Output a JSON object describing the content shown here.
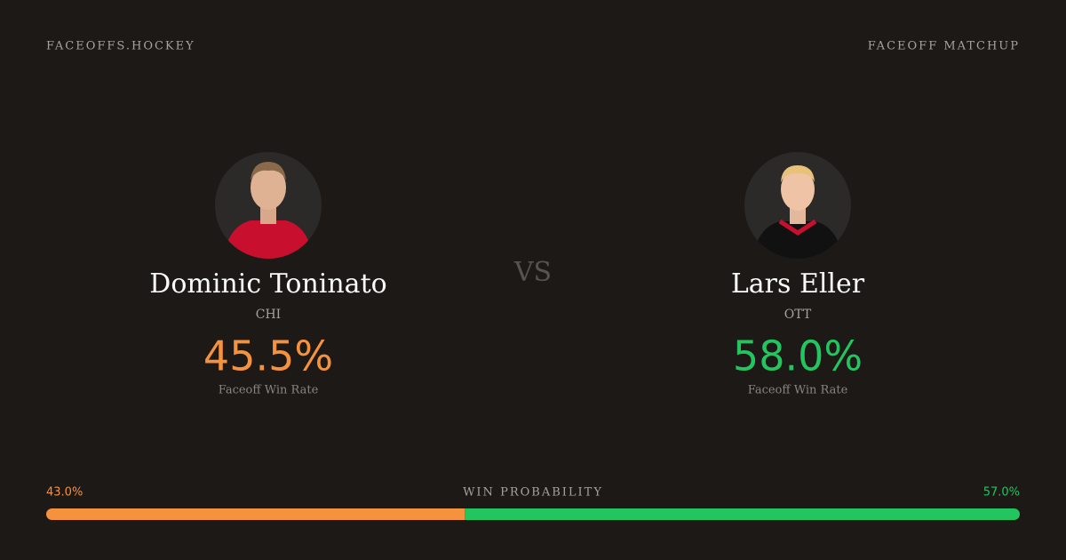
{
  "header": {
    "brand": "FACEOFFS.HOCKEY",
    "label": "FACEOFF MATCHUP"
  },
  "vs": "VS",
  "players": [
    {
      "name": "Dominic Toninato",
      "team": "CHI",
      "rate": "45.5%",
      "rate_label": "Faceoff Win Rate",
      "color": "#f5923e"
    },
    {
      "name": "Lars Eller",
      "team": "OTT",
      "rate": "58.0%",
      "rate_label": "Faceoff Win Rate",
      "color": "#22c55e"
    }
  ],
  "win_probability": {
    "title": "WIN PROBABILITY",
    "values": [
      43.0,
      57.0
    ],
    "value_labels": [
      "43.0%",
      "57.0%"
    ]
  }
}
